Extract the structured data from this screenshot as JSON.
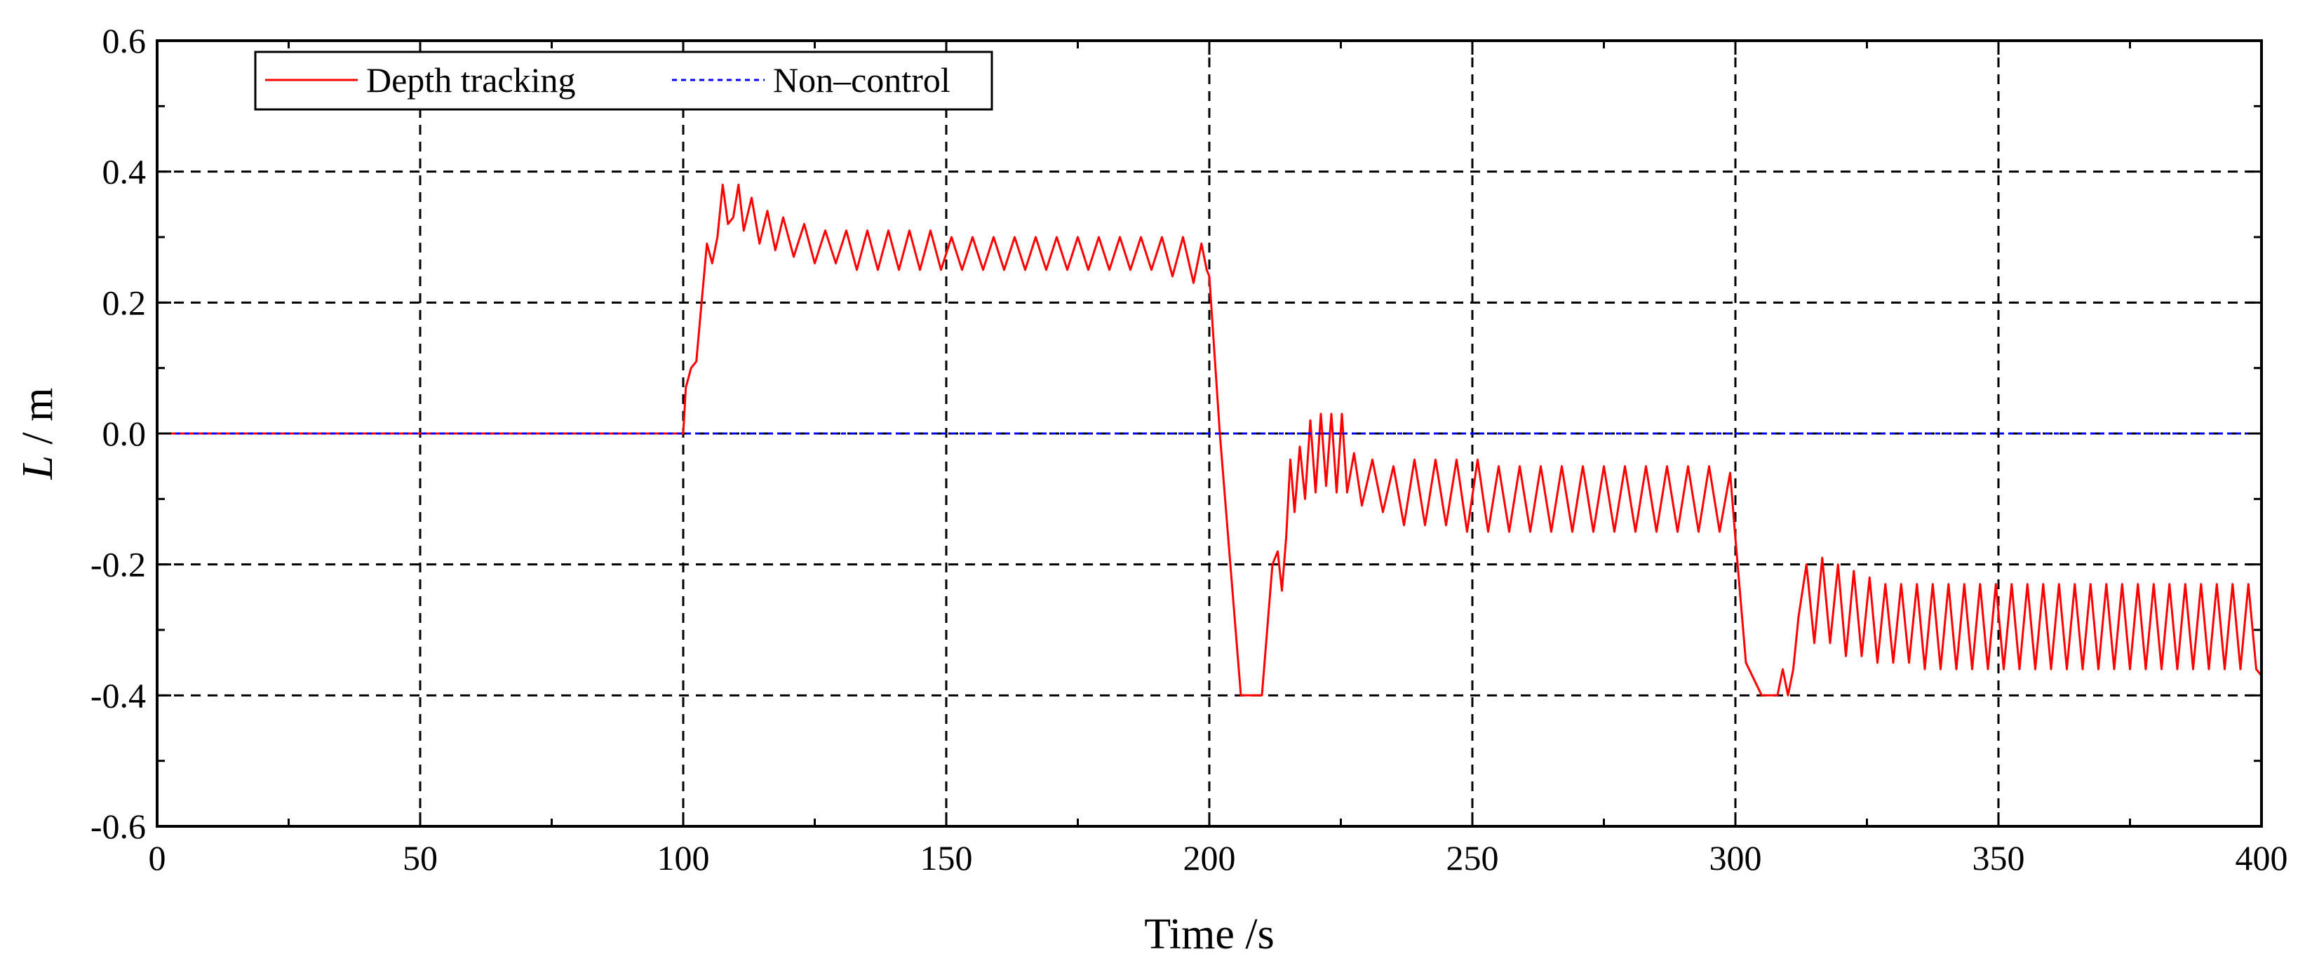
{
  "chart_data": {
    "type": "line",
    "title": "",
    "xlabel": "Time /s",
    "ylabel_var": "L",
    "ylabel_unit": " / m",
    "xlim": [
      0,
      400
    ],
    "ylim": [
      -0.6,
      0.6
    ],
    "xticks": [
      0,
      50,
      100,
      150,
      200,
      250,
      300,
      350,
      400
    ],
    "xtick_labels": [
      "0",
      "50",
      "100",
      "150",
      "200",
      "250",
      "300",
      "350",
      "400"
    ],
    "yticks": [
      -0.6,
      -0.4,
      -0.2,
      0.0,
      0.2,
      0.4,
      0.6
    ],
    "ytick_labels": [
      "-0.6",
      "-0.4",
      "-0.2",
      "0.0",
      "0.2",
      "0.4",
      "0.6"
    ],
    "grid": true,
    "legend_position": "top-left",
    "series": [
      {
        "name": "Depth tracking",
        "color": "#ff0000",
        "style": "solid",
        "description": "Red oscillating response",
        "x": [
          0,
          100,
          100.5,
          101.5,
          102.5,
          103.5,
          104.5,
          105.5,
          106.5,
          107.5,
          108.5,
          109.5,
          110.5,
          111.5,
          113,
          114.5,
          116,
          117.5,
          119,
          121,
          123,
          125,
          127,
          129,
          131,
          133,
          135,
          137,
          139,
          141,
          143,
          145,
          147,
          149,
          151,
          153,
          155,
          157,
          159,
          161,
          163,
          165,
          167,
          169,
          171,
          173,
          175,
          177,
          179,
          181,
          183,
          185,
          187,
          189,
          191,
          193,
          195,
          197,
          198.5,
          199.5,
          200,
          202,
          204,
          206,
          210,
          212,
          213,
          213.8,
          214.6,
          215.4,
          216.2,
          217.2,
          218.2,
          219.2,
          220.2,
          221.2,
          222.2,
          223.2,
          224.2,
          225.2,
          226.2,
          227.5,
          229,
          231,
          233,
          235,
          237,
          239,
          241,
          243,
          245,
          247,
          249,
          251,
          253,
          255,
          257,
          259,
          261,
          263,
          265,
          267,
          269,
          271,
          273,
          275,
          277,
          279,
          281,
          283,
          285,
          287,
          289,
          291,
          293,
          295,
          297,
          299,
          300,
          302,
          305,
          308,
          309,
          310,
          311,
          312,
          313.5,
          315,
          316.5,
          318,
          319.5,
          321,
          322.5,
          324,
          325.5,
          327,
          328.5,
          330,
          331.5,
          333,
          334.5,
          336,
          337.5,
          339,
          340.5,
          342,
          343.5,
          345,
          346.5,
          348,
          349.5,
          351,
          352.5,
          354,
          355.5,
          357,
          358.5,
          360,
          361.5,
          363,
          364.5,
          366,
          367.5,
          369,
          370.5,
          372,
          373.5,
          375,
          376.5,
          378,
          379.5,
          381,
          382.5,
          384,
          385.5,
          387,
          388.5,
          390,
          391.5,
          393,
          394.5,
          396,
          397.5,
          399,
          400
        ],
        "y": [
          0,
          0,
          0.07,
          0.1,
          0.11,
          0.2,
          0.29,
          0.26,
          0.3,
          0.38,
          0.32,
          0.33,
          0.38,
          0.31,
          0.36,
          0.29,
          0.34,
          0.28,
          0.33,
          0.27,
          0.32,
          0.26,
          0.31,
          0.26,
          0.31,
          0.25,
          0.31,
          0.25,
          0.31,
          0.25,
          0.31,
          0.25,
          0.31,
          0.25,
          0.3,
          0.25,
          0.3,
          0.25,
          0.3,
          0.25,
          0.3,
          0.25,
          0.3,
          0.25,
          0.3,
          0.25,
          0.3,
          0.25,
          0.3,
          0.25,
          0.3,
          0.25,
          0.3,
          0.25,
          0.3,
          0.24,
          0.3,
          0.23,
          0.29,
          0.25,
          0.24,
          0.0,
          -0.2,
          -0.4,
          -0.4,
          -0.2,
          -0.18,
          -0.24,
          -0.16,
          -0.04,
          -0.12,
          -0.02,
          -0.1,
          0.02,
          -0.09,
          0.03,
          -0.08,
          0.03,
          -0.09,
          0.03,
          -0.09,
          -0.03,
          -0.11,
          -0.04,
          -0.12,
          -0.05,
          -0.14,
          -0.04,
          -0.14,
          -0.04,
          -0.14,
          -0.04,
          -0.15,
          -0.04,
          -0.15,
          -0.05,
          -0.15,
          -0.05,
          -0.15,
          -0.05,
          -0.15,
          -0.05,
          -0.15,
          -0.05,
          -0.15,
          -0.05,
          -0.15,
          -0.05,
          -0.15,
          -0.05,
          -0.15,
          -0.05,
          -0.15,
          -0.05,
          -0.15,
          -0.05,
          -0.15,
          -0.06,
          -0.16,
          -0.35,
          -0.4,
          -0.4,
          -0.36,
          -0.4,
          -0.36,
          -0.28,
          -0.2,
          -0.32,
          -0.19,
          -0.32,
          -0.2,
          -0.34,
          -0.21,
          -0.34,
          -0.22,
          -0.35,
          -0.23,
          -0.35,
          -0.23,
          -0.35,
          -0.23,
          -0.36,
          -0.23,
          -0.36,
          -0.23,
          -0.36,
          -0.23,
          -0.36,
          -0.23,
          -0.36,
          -0.23,
          -0.36,
          -0.23,
          -0.36,
          -0.23,
          -0.36,
          -0.23,
          -0.36,
          -0.23,
          -0.36,
          -0.23,
          -0.36,
          -0.23,
          -0.36,
          -0.23,
          -0.36,
          -0.23,
          -0.36,
          -0.23,
          -0.36,
          -0.23,
          -0.36,
          -0.23,
          -0.36,
          -0.23,
          -0.36,
          -0.23,
          -0.36,
          -0.23,
          -0.36,
          -0.23,
          -0.36,
          -0.23,
          -0.36,
          -0.37
        ]
      },
      {
        "name": "Non–control",
        "color": "#0000ff",
        "style": "dotted",
        "x": [
          0,
          400
        ],
        "y": [
          0,
          0
        ]
      }
    ]
  }
}
